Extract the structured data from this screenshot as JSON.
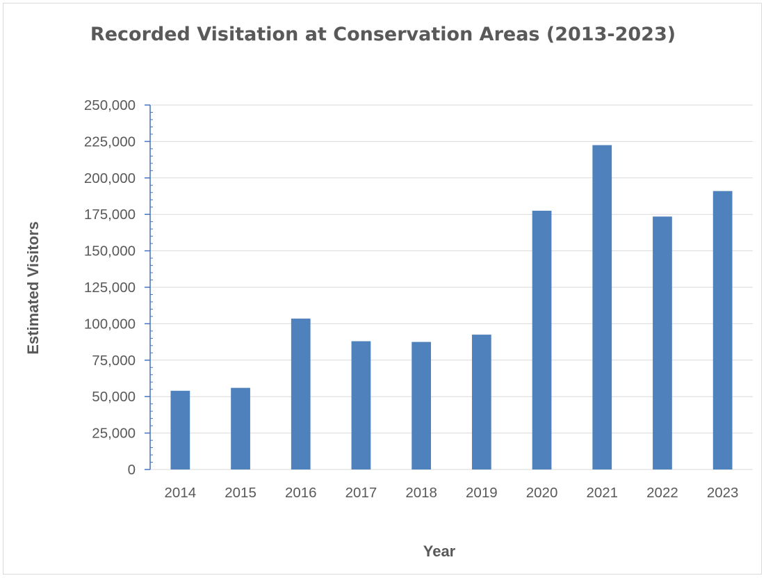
{
  "chart_data": {
    "type": "bar",
    "title": "Recorded Visitation at Conservation Areas (2013-2023)",
    "xlabel": "Year",
    "ylabel": "Estimated Visitors",
    "categories": [
      "2014",
      "2015",
      "2016",
      "2017",
      "2018",
      "2019",
      "2020",
      "2021",
      "2022",
      "2023"
    ],
    "series": [
      {
        "values": [
          54000,
          56000,
          103500,
          88000,
          87500,
          92500,
          177500,
          222500,
          173500,
          191000
        ]
      }
    ],
    "ylim": [
      0,
      250000
    ],
    "yticks": [
      0,
      25000,
      50000,
      75000,
      100000,
      125000,
      150000,
      175000,
      200000,
      225000,
      250000
    ],
    "ytick_labels": [
      "0",
      "25,000",
      "50,000",
      "75,000",
      "100,000",
      "125,000",
      "150,000",
      "175,000",
      "200,000",
      "225,000",
      "250,000"
    ],
    "grid": true,
    "legend": "none",
    "colors": {
      "bar": "#4f81bd",
      "axis": "#4472c4",
      "grid": "#d9d9d9",
      "text": "#595959"
    }
  }
}
